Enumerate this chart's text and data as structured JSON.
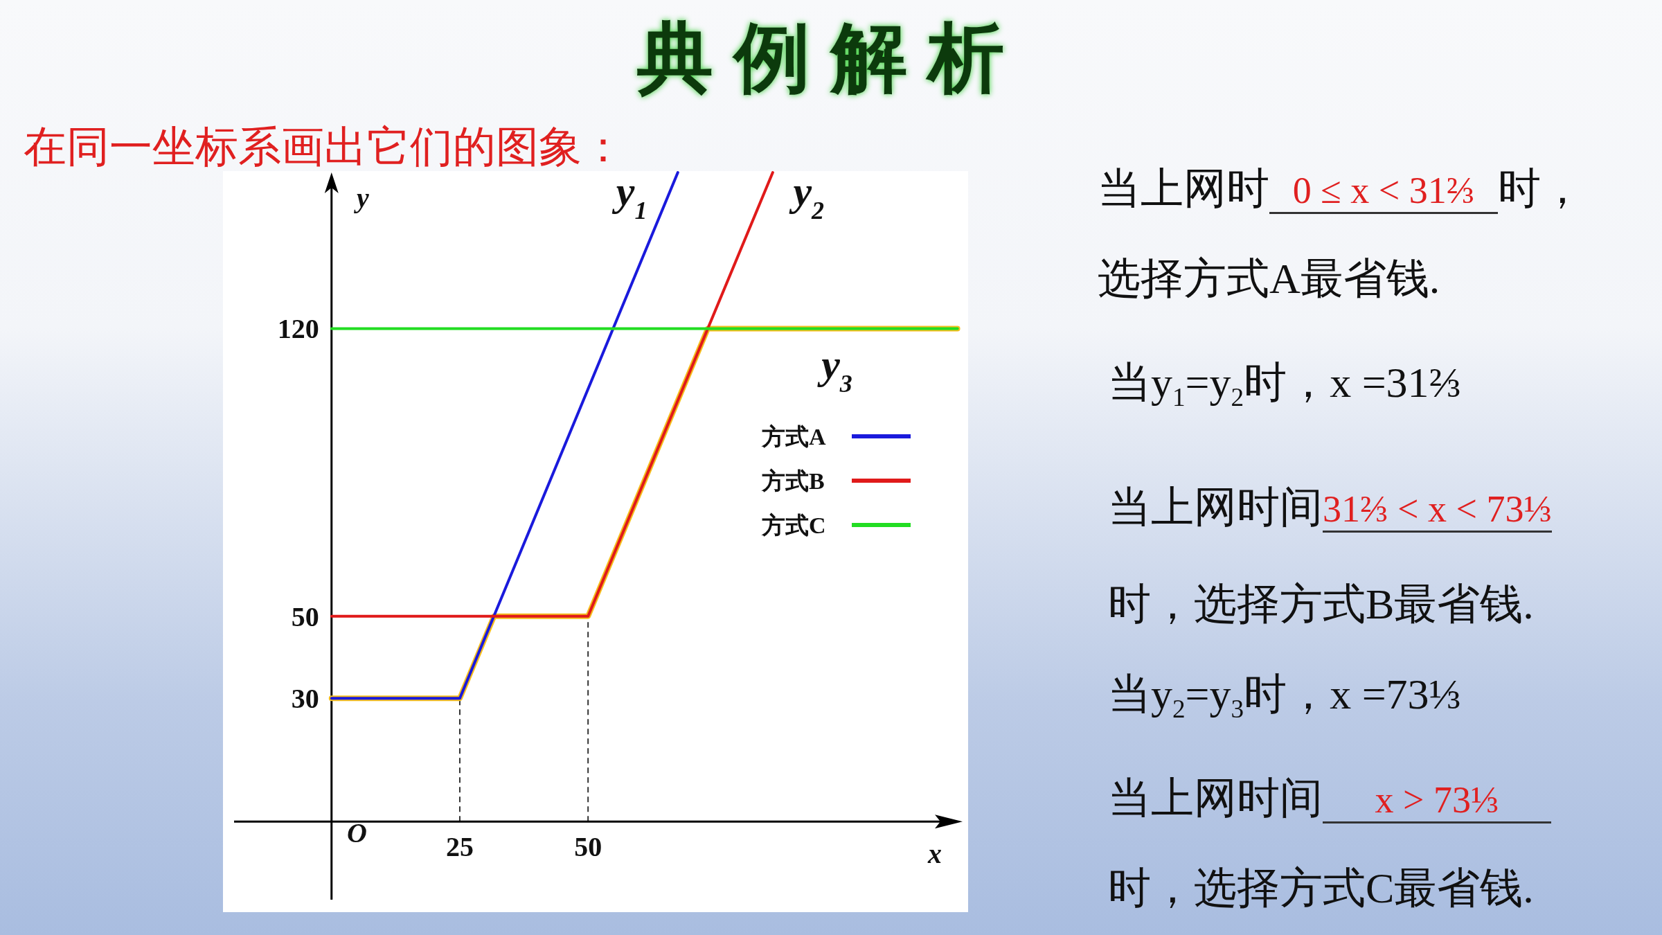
{
  "chart_data": {
    "type": "line",
    "title": "典例解析",
    "subtitle": "在同一坐标系画出它们的图象：",
    "xlabel": "x",
    "ylabel": "y",
    "xlim": [
      -19,
      123
    ],
    "ylim": [
      -19,
      158
    ],
    "xticks": [
      25,
      50
    ],
    "yticks": [
      30,
      50,
      120
    ],
    "grid": false,
    "legend": "right",
    "marker": "none",
    "line_style": "solid",
    "series": [
      {
        "name": "方式A",
        "color": "#1a1adc",
        "x": [
          0,
          25,
          67.5
        ],
        "values": [
          30,
          30,
          158
        ]
      },
      {
        "name": "方式B",
        "color": "#e01a1a",
        "x": [
          0,
          50,
          86
        ],
        "values": [
          50,
          50,
          158
        ]
      },
      {
        "name": "方式C",
        "color": "#22dd22",
        "x": [
          0,
          122
        ],
        "values": [
          120,
          120
        ]
      },
      {
        "color": "#f5be1e",
        "x": [
          0,
          25,
          31.67,
          50,
          73.33,
          122
        ],
        "values": [
          30,
          30,
          50,
          50,
          120,
          120
        ]
      }
    ],
    "ref_lines": [
      {
        "axis": "x",
        "value": 25,
        "line_style": "dashed",
        "color": "#333333"
      },
      {
        "axis": "x",
        "value": 50,
        "line_style": "dashed",
        "color": "#333333"
      }
    ],
    "annotations": [
      "y$_{1}$",
      "y$_{2}$",
      "y$_{3}$",
      "O",
      "当上网时",
      "0 ≤ x < 31⅔",
      "时，",
      "选择方式A最省钱.",
      "当y$_{1}$=y$_{2}$时，x =31⅔",
      "当上网时间",
      "31⅔ < x < 73⅓",
      "时，选择方式B最省钱.",
      "当y$_{2}$=y$_{3}$时，x =73⅓",
      "当上网时间",
      "x > 73⅓",
      "时，选择方式C最省钱."
    ]
  }
}
